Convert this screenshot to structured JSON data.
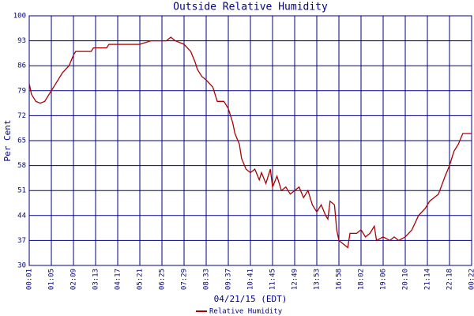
{
  "chart_data": {
    "type": "line",
    "title": "Outside Relative Humidity",
    "x_label": "04/21/15 (EDT)",
    "y_label": "Per Cent",
    "xlim": [
      0,
      20
    ],
    "ylim": [
      30,
      100
    ],
    "xticks": [
      {
        "value": 0,
        "label": "00:01"
      },
      {
        "value": 1,
        "label": "01:05"
      },
      {
        "value": 2,
        "label": "02:09"
      },
      {
        "value": 3,
        "label": "03:13"
      },
      {
        "value": 4,
        "label": "04:17"
      },
      {
        "value": 5,
        "label": "05:21"
      },
      {
        "value": 6,
        "label": "06:25"
      },
      {
        "value": 7,
        "label": "07:29"
      },
      {
        "value": 8,
        "label": "08:33"
      },
      {
        "value": 9,
        "label": "09:37"
      },
      {
        "value": 10,
        "label": "10:41"
      },
      {
        "value": 11,
        "label": "11:45"
      },
      {
        "value": 12,
        "label": "12:49"
      },
      {
        "value": 13,
        "label": "13:53"
      },
      {
        "value": 14,
        "label": "16:58"
      },
      {
        "value": 15,
        "label": "18:02"
      },
      {
        "value": 16,
        "label": "19:06"
      },
      {
        "value": 17,
        "label": "20:10"
      },
      {
        "value": 18,
        "label": "21:14"
      },
      {
        "value": 19,
        "label": "22:18"
      },
      {
        "value": 20,
        "label": "00:22"
      }
    ],
    "yticks": [
      30,
      37,
      44,
      51,
      58,
      65,
      72,
      79,
      86,
      93,
      100
    ],
    "grid": true,
    "grid_color": "#000080",
    "legend": "bottom",
    "series": [
      {
        "name": "Relative Humidity",
        "color": "#aa0000",
        "x": [
          0,
          0.1,
          0.3,
          0.5,
          0.7,
          1.0,
          1.1,
          1.3,
          1.5,
          1.8,
          2.0,
          2.1,
          2.8,
          2.9,
          3.5,
          3.6,
          4.8,
          5.0,
          5.5,
          6.0,
          6.2,
          6.4,
          6.6,
          7.0,
          7.3,
          7.5,
          7.6,
          7.8,
          8.0,
          8.3,
          8.5,
          8.8,
          9.0,
          9.2,
          9.3,
          9.5,
          9.6,
          9.8,
          10.0,
          10.2,
          10.4,
          10.5,
          10.7,
          10.9,
          11.0,
          11.2,
          11.4,
          11.6,
          11.8,
          12.0,
          12.2,
          12.4,
          12.6,
          12.8,
          13.0,
          13.2,
          13.4,
          13.5,
          13.6,
          13.8,
          13.9,
          14.0,
          14.2,
          14.4,
          14.5,
          14.8,
          15.0,
          15.2,
          15.4,
          15.6,
          15.7,
          16.0,
          16.3,
          16.5,
          16.7,
          17.0,
          17.3,
          17.6,
          17.9,
          18.1,
          18.5,
          18.8,
          19.0,
          19.2,
          19.4,
          19.6,
          20.0
        ],
        "values": [
          81,
          78,
          76,
          75.5,
          76,
          79,
          80,
          82,
          84,
          86,
          89,
          90,
          90,
          91,
          91,
          92,
          92,
          92,
          93,
          93,
          93,
          94,
          93,
          92,
          90,
          87,
          85,
          83,
          82,
          80,
          76,
          76,
          74,
          70,
          67,
          64,
          60,
          57,
          56,
          57,
          54,
          56,
          53,
          57,
          52,
          55,
          51,
          52,
          50,
          51,
          52,
          49,
          51,
          47,
          45,
          47,
          44,
          43,
          48,
          47,
          40,
          37,
          36,
          35,
          39,
          39,
          40,
          38,
          39,
          41,
          37,
          38,
          37,
          38,
          37,
          38,
          40,
          44,
          46,
          48,
          50,
          55,
          58,
          62,
          64,
          67,
          67
        ]
      }
    ]
  }
}
